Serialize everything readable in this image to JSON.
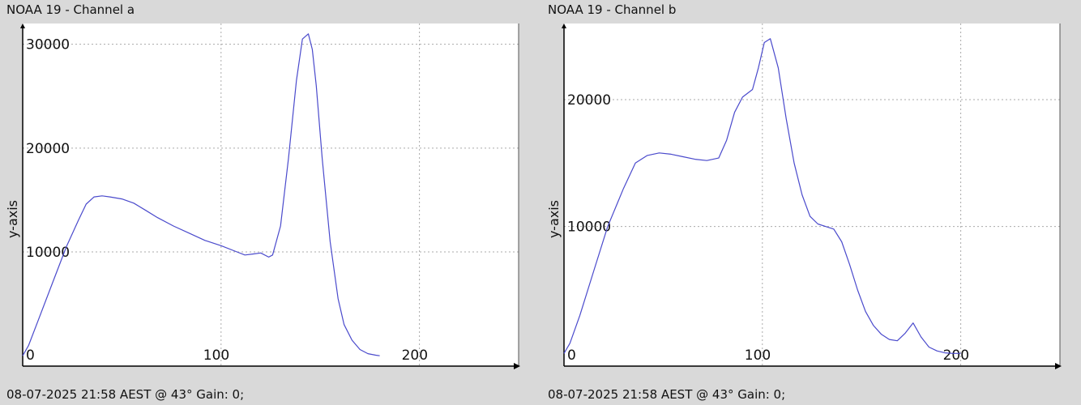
{
  "charts": [
    {
      "title": "NOAA 19 - Channel a",
      "footer": "08-07-2025 21:58 AEST @ 43° Gain: 0;",
      "ylabel": "y-axis"
    },
    {
      "title": "NOAA 19 - Channel b",
      "footer": "08-07-2025 21:58 AEST @ 43° Gain: 0;",
      "ylabel": "y-axis"
    }
  ],
  "colors": {
    "line": "#4a4acc",
    "grid": "#aaaaaa",
    "axis": "#000000",
    "plot_bg": "#ffffff",
    "window_bg": "#d9d9d9"
  },
  "chart_data": [
    {
      "type": "line",
      "title": "NOAA 19 - Channel a",
      "ylabel": "y-axis",
      "xlim": [
        0,
        250
      ],
      "ylim": [
        -1000,
        32000
      ],
      "xticks": [
        0,
        100,
        200
      ],
      "yticks": [
        0,
        10000,
        20000,
        30000
      ],
      "xtick_labels": [
        "0",
        "100",
        "200"
      ],
      "ytick_labels": [
        "0",
        "10000",
        "20000",
        "30000"
      ],
      "grid": true,
      "series": [
        {
          "x": [
            0,
            3,
            8,
            15,
            22,
            28,
            32,
            36,
            40,
            44,
            50,
            56,
            62,
            68,
            76,
            84,
            92,
            100,
            108,
            112,
            116,
            120,
            124,
            126,
            130,
            134,
            138,
            141,
            144,
            146,
            148,
            151,
            155,
            159,
            162,
            166,
            170,
            174,
            178,
            180
          ],
          "y": [
            0,
            1000,
            3500,
            7000,
            10500,
            13000,
            14600,
            15300,
            15400,
            15300,
            15100,
            14700,
            14000,
            13300,
            12500,
            11800,
            11100,
            10600,
            10000,
            9700,
            9800,
            9900,
            9500,
            9700,
            12500,
            19000,
            26500,
            30500,
            31000,
            29500,
            26000,
            19000,
            11000,
            5500,
            3000,
            1500,
            600,
            200,
            50,
            0
          ]
        }
      ]
    },
    {
      "type": "line",
      "title": "NOAA 19 - Channel b",
      "ylabel": "y-axis",
      "xlim": [
        0,
        250
      ],
      "ylim": [
        -1000,
        26000
      ],
      "xticks": [
        0,
        100,
        200
      ],
      "yticks": [
        0,
        10000,
        20000
      ],
      "xtick_labels": [
        "0",
        "100",
        "200"
      ],
      "ytick_labels": [
        "0",
        "10000",
        "20000"
      ],
      "grid": true,
      "series": [
        {
          "x": [
            0,
            3,
            8,
            15,
            22,
            30,
            36,
            42,
            48,
            54,
            60,
            66,
            72,
            78,
            82,
            86,
            90,
            95,
            98,
            101,
            104,
            108,
            112,
            116,
            120,
            124,
            128,
            132,
            136,
            140,
            144,
            148,
            152,
            156,
            160,
            164,
            168,
            172,
            176,
            180,
            184,
            188,
            192,
            196,
            200
          ],
          "y": [
            0,
            800,
            3000,
            6500,
            10000,
            13000,
            15000,
            15600,
            15800,
            15700,
            15500,
            15300,
            15200,
            15400,
            16800,
            19000,
            20200,
            20800,
            22500,
            24500,
            24800,
            22500,
            18500,
            15000,
            12500,
            10800,
            10200,
            10000,
            9800,
            8800,
            7000,
            5000,
            3300,
            2200,
            1500,
            1100,
            1000,
            1600,
            2400,
            1300,
            500,
            200,
            50,
            0,
            0
          ]
        }
      ]
    }
  ]
}
